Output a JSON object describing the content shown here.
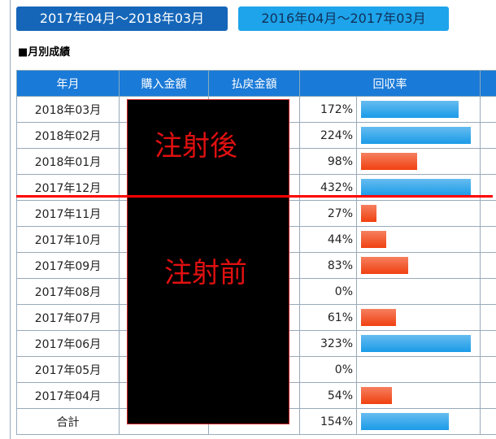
{
  "tabs": [
    "2017年04月～2018年03月",
    "2016年04月～2017年03月"
  ],
  "section_title": "■月別成績",
  "table": {
    "headers": [
      "年月",
      "購入金額",
      "払戻金額",
      "回収率"
    ],
    "rows": [
      {
        "month": "2018年03月",
        "rate": 172,
        "rate_label": "172%",
        "color": "#1a9be8"
      },
      {
        "month": "2018年02月",
        "rate": 224,
        "rate_label": "224%",
        "color": "#1a9be8"
      },
      {
        "month": "2018年01月",
        "rate": 98,
        "rate_label": "98%",
        "color": "#f04010"
      },
      {
        "month": "2017年12月",
        "rate": 432,
        "rate_label": "432%",
        "color": "#1a9be8"
      },
      {
        "month": "2017年11月",
        "rate": 27,
        "rate_label": "27%",
        "color": "#f04010"
      },
      {
        "month": "2017年10月",
        "rate": 44,
        "rate_label": "44%",
        "color": "#f04010"
      },
      {
        "month": "2017年09月",
        "rate": 83,
        "rate_label": "83%",
        "color": "#f04010"
      },
      {
        "month": "2017年08月",
        "rate": 0,
        "rate_label": "0%",
        "color": "#f04010"
      },
      {
        "month": "2017年07月",
        "rate": 61,
        "rate_label": "61%",
        "color": "#f04010"
      },
      {
        "month": "2017年06月",
        "rate": 323,
        "rate_label": "323%",
        "color": "#1a9be8"
      },
      {
        "month": "2017年05月",
        "rate": 0,
        "rate_label": "0%",
        "color": "#f04010"
      },
      {
        "month": "2017年04月",
        "rate": 54,
        "rate_label": "54%",
        "color": "#f04010"
      },
      {
        "month": "合計",
        "rate": 154,
        "rate_label": "154%",
        "color": "#1a9be8"
      }
    ]
  },
  "annotations": {
    "after": "注射後",
    "before": "注射前"
  }
}
